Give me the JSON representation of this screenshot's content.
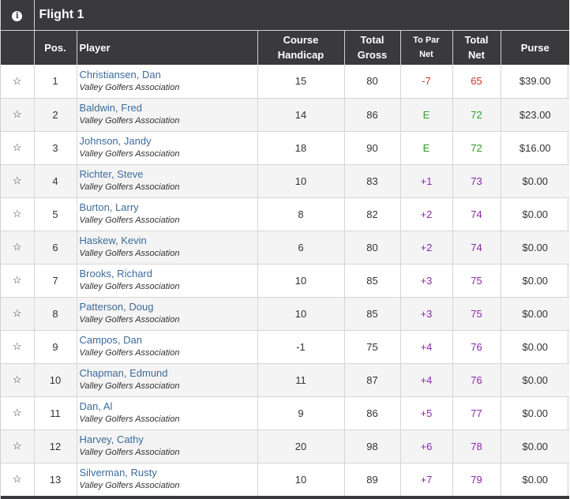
{
  "flight": {
    "info_icon": "info-icon",
    "title": "Flight 1"
  },
  "headers": {
    "pos": "Pos.",
    "player": "Player",
    "course_handicap": [
      "Course",
      "Handicap"
    ],
    "total_gross": [
      "Total",
      "Gross"
    ],
    "to_par_net": [
      "To Par",
      "Net"
    ],
    "total_net": [
      "Total",
      "Net"
    ],
    "purse": "Purse"
  },
  "colors": {
    "header_bg": "#3a3a3c",
    "player_link": "#3d6b9a",
    "star": "#d62f2f",
    "under_par": "#d12f2f",
    "even_par": "#2f9a2f",
    "over_par": "#8a2aa5"
  },
  "rows": [
    {
      "pos": "1",
      "name": "Christiansen, Dan",
      "assoc": "Valley Golfers Association",
      "handicap": "15",
      "gross": "80",
      "to_par": "-7",
      "net": "65",
      "purse": "$39.00",
      "tone": "red"
    },
    {
      "pos": "2",
      "name": "Baldwin, Fred",
      "assoc": "Valley Golfers Association",
      "handicap": "14",
      "gross": "86",
      "to_par": "E",
      "net": "72",
      "purse": "$23.00",
      "tone": "green"
    },
    {
      "pos": "3",
      "name": "Johnson, Jandy",
      "assoc": "Valley Golfers Association",
      "handicap": "18",
      "gross": "90",
      "to_par": "E",
      "net": "72",
      "purse": "$16.00",
      "tone": "green"
    },
    {
      "pos": "4",
      "name": "Richter, Steve",
      "assoc": "Valley Golfers Association",
      "handicap": "10",
      "gross": "83",
      "to_par": "+1",
      "net": "73",
      "purse": "$0.00",
      "tone": "purple"
    },
    {
      "pos": "5",
      "name": "Burton, Larry",
      "assoc": "Valley Golfers Association",
      "handicap": "8",
      "gross": "82",
      "to_par": "+2",
      "net": "74",
      "purse": "$0.00",
      "tone": "purple"
    },
    {
      "pos": "6",
      "name": "Haskew, Kevin",
      "assoc": "Valley Golfers Association",
      "handicap": "6",
      "gross": "80",
      "to_par": "+2",
      "net": "74",
      "purse": "$0.00",
      "tone": "purple"
    },
    {
      "pos": "7",
      "name": "Brooks, Richard",
      "assoc": "Valley Golfers Association",
      "handicap": "10",
      "gross": "85",
      "to_par": "+3",
      "net": "75",
      "purse": "$0.00",
      "tone": "purple"
    },
    {
      "pos": "8",
      "name": "Patterson, Doug",
      "assoc": "Valley Golfers Association",
      "handicap": "10",
      "gross": "85",
      "to_par": "+3",
      "net": "75",
      "purse": "$0.00",
      "tone": "purple"
    },
    {
      "pos": "9",
      "name": "Campos, Dan",
      "assoc": "Valley Golfers Association",
      "handicap": "-1",
      "gross": "75",
      "to_par": "+4",
      "net": "76",
      "purse": "$0.00",
      "tone": "purple"
    },
    {
      "pos": "10",
      "name": "Chapman, Edmund",
      "assoc": "Valley Golfers Association",
      "handicap": "11",
      "gross": "87",
      "to_par": "+4",
      "net": "76",
      "purse": "$0.00",
      "tone": "purple"
    },
    {
      "pos": "11",
      "name": "Dan, Al",
      "assoc": "Valley Golfers Association",
      "handicap": "9",
      "gross": "86",
      "to_par": "+5",
      "net": "77",
      "purse": "$0.00",
      "tone": "purple"
    },
    {
      "pos": "12",
      "name": "Harvey, Cathy",
      "assoc": "Valley Golfers Association",
      "handicap": "20",
      "gross": "98",
      "to_par": "+6",
      "net": "78",
      "purse": "$0.00",
      "tone": "purple"
    },
    {
      "pos": "13",
      "name": "Silverman, Rusty",
      "assoc": "Valley Golfers Association",
      "handicap": "10",
      "gross": "89",
      "to_par": "+7",
      "net": "79",
      "purse": "$0.00",
      "tone": "purple"
    }
  ]
}
